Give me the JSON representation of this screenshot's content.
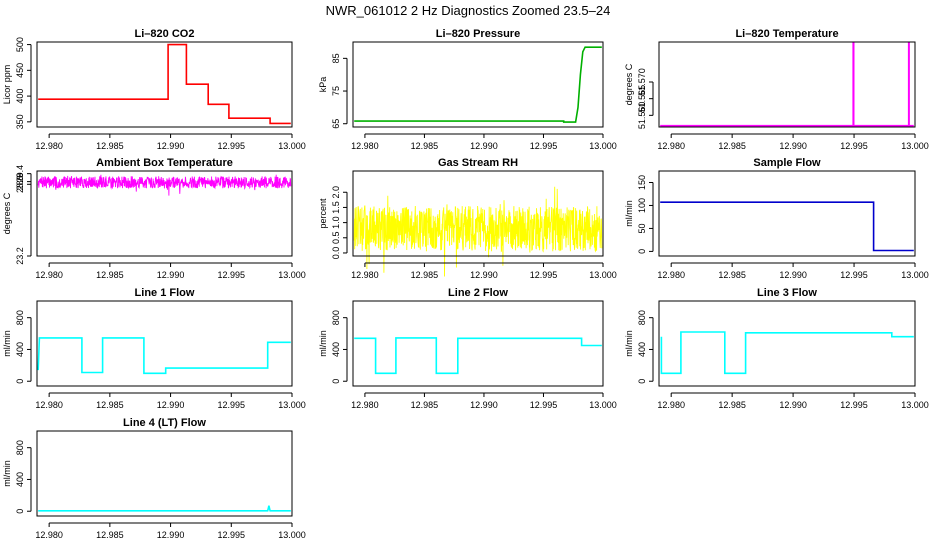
{
  "title": "NWR_061012  2 Hz Diagnostics Zoomed 23.5–24",
  "chart_data": [
    {
      "type": "line",
      "title": "Li–820 CO2",
      "ylabel": "Licor ppm",
      "color": "#ff0000",
      "style": "step",
      "xlim": [
        12.979,
        13.0
      ],
      "ylim": [
        340,
        505
      ],
      "xticks": [
        12.98,
        12.985,
        12.99,
        12.995,
        13.0
      ],
      "xtick_labels": [
        "12.980",
        "12.985",
        "12.990",
        "12.995",
        "13.000"
      ],
      "yticks": [
        350,
        400,
        450,
        500
      ],
      "series": [
        {
          "name": "CO2",
          "points": [
            [
              12.9791,
              394
            ],
            [
              12.9898,
              394
            ],
            [
              12.9898,
              500
            ],
            [
              12.9913,
              500
            ],
            [
              12.9913,
              423
            ],
            [
              12.9931,
              423
            ],
            [
              12.9931,
              384
            ],
            [
              12.9948,
              384
            ],
            [
              12.9948,
              357
            ],
            [
              12.9982,
              357
            ],
            [
              12.9982,
              347
            ],
            [
              12.9999,
              347
            ]
          ]
        }
      ]
    },
    {
      "type": "line",
      "title": "Li–820 Pressure",
      "ylabel": "kPa",
      "color": "#00b000",
      "style": "step",
      "xlim": [
        12.979,
        13.0
      ],
      "ylim": [
        64,
        90
      ],
      "xticks": [
        12.98,
        12.985,
        12.99,
        12.995,
        13.0
      ],
      "xtick_labels": [
        "12.980",
        "12.985",
        "12.990",
        "12.995",
        "13.000"
      ],
      "yticks": [
        65,
        75,
        85
      ],
      "series": [
        {
          "name": "Pressure",
          "points": [
            [
              12.9791,
              65.8
            ],
            [
              12.9967,
              65.8
            ],
            [
              12.9967,
              65.5
            ],
            [
              12.9977,
              65.5
            ],
            [
              12.9979,
              70
            ],
            [
              12.9981,
              80
            ],
            [
              12.9983,
              87
            ],
            [
              12.9985,
              88.4
            ],
            [
              12.9999,
              88.4
            ]
          ]
        }
      ]
    },
    {
      "type": "line",
      "title": "Li–820 Temperature",
      "ylabel": "degrees C",
      "color": "#ff00ff",
      "style": "step",
      "xlim": [
        12.979,
        13.0
      ],
      "ylim": [
        51.5565,
        51.582
      ],
      "xticks": [
        12.98,
        12.985,
        12.99,
        12.995,
        13.0
      ],
      "xtick_labels": [
        "12.980",
        "12.985",
        "12.990",
        "12.995",
        "13.000"
      ],
      "yticks": [
        51.57,
        51.565,
        51.56
      ],
      "ytick_labels": [
        "51.570",
        "51.565",
        "51.560"
      ],
      "series": [
        {
          "name": "Temperature",
          "points": [
            [
              12.9791,
              51.5569
            ],
            [
              12.99493,
              51.5569
            ],
            [
              12.99493,
              51.5818
            ],
            [
              12.99497,
              51.5818
            ],
            [
              12.99497,
              51.5569
            ],
            [
              12.99948,
              51.5569
            ],
            [
              12.99948,
              51.5818
            ],
            [
              12.99952,
              51.5818
            ],
            [
              12.99952,
              51.5569
            ],
            [
              12.9999,
              51.5569
            ]
          ]
        }
      ]
    },
    {
      "type": "line",
      "title": "Ambient Box Temperature",
      "ylabel": "degrees C",
      "color": "#ff00ff",
      "style": "noise",
      "xlim": [
        12.979,
        13.0
      ],
      "ylim": [
        23.2,
        29.6
      ],
      "xticks": [
        12.98,
        12.985,
        12.99,
        12.995,
        13.0
      ],
      "xtick_labels": [
        "12.980",
        "12.985",
        "12.990",
        "12.995",
        "13.000"
      ],
      "yticks": [
        23.2,
        28.6,
        28.8,
        29.4
      ],
      "ytick_labels": [
        "23.2",
        "28.6",
        "28.8",
        "29.4"
      ],
      "series": [
        {
          "name": "Box temperature",
          "noise": {
            "x0": 12.9791,
            "x1": 12.9999,
            "center": 28.75,
            "amp": 0.45,
            "n": 900,
            "seed": 7
          }
        }
      ]
    },
    {
      "type": "line",
      "title": "Gas Stream RH",
      "ylabel": "percent",
      "color": "#ffff00",
      "style": "noise",
      "xlim": [
        12.979,
        13.0
      ],
      "ylim": [
        -0.1,
        2.7
      ],
      "xticks": [
        12.98,
        12.985,
        12.99,
        12.995,
        13.0
      ],
      "xtick_labels": [
        "12.980",
        "12.985",
        "12.990",
        "12.995",
        "13.000"
      ],
      "yticks": [
        0,
        0.5,
        1,
        1.5,
        2
      ],
      "ytick_labels": [
        "0.0",
        "0.5",
        "1.0",
        "1.5",
        "2.0"
      ],
      "series": [
        {
          "name": "RH",
          "noise": {
            "x0": 12.9791,
            "x1": 12.9999,
            "center": 0.8,
            "amp": 0.75,
            "n": 900,
            "seed": 13
          }
        }
      ]
    },
    {
      "type": "line",
      "title": "Sample Flow",
      "ylabel": "ml/min",
      "color": "#0000cc",
      "style": "step",
      "xlim": [
        12.979,
        13.0
      ],
      "ylim": [
        -10,
        175
      ],
      "xticks": [
        12.98,
        12.985,
        12.99,
        12.995,
        13.0
      ],
      "xtick_labels": [
        "12.980",
        "12.985",
        "12.990",
        "12.995",
        "13.000"
      ],
      "yticks": [
        0,
        50,
        100,
        150
      ],
      "series": [
        {
          "name": "Sample flow",
          "points": [
            [
              12.9791,
              107
            ],
            [
              12.9966,
              107
            ],
            [
              12.9966,
              2
            ],
            [
              12.9999,
              2
            ]
          ]
        }
      ]
    },
    {
      "type": "line",
      "title": "Line 1 Flow",
      "ylabel": "ml/min",
      "color": "#00ffff",
      "style": "step",
      "xlim": [
        12.979,
        13.0
      ],
      "ylim": [
        -60,
        1010
      ],
      "xticks": [
        12.98,
        12.985,
        12.99,
        12.995,
        13.0
      ],
      "xtick_labels": [
        "12.980",
        "12.985",
        "12.990",
        "12.995",
        "13.000"
      ],
      "yticks": [
        0,
        400,
        800
      ],
      "series": [
        {
          "name": "Line 1",
          "points": [
            [
              12.9791,
              140
            ],
            [
              12.9792,
              545
            ],
            [
              12.9827,
              545
            ],
            [
              12.9827,
              110
            ],
            [
              12.9844,
              110
            ],
            [
              12.9844,
              545
            ],
            [
              12.9878,
              545
            ],
            [
              12.9878,
              100
            ],
            [
              12.9896,
              100
            ],
            [
              12.9896,
              165
            ],
            [
              12.998,
              165
            ],
            [
              12.998,
              490
            ],
            [
              12.9999,
              490
            ]
          ]
        }
      ]
    },
    {
      "type": "line",
      "title": "Line 2 Flow",
      "ylabel": "ml/min",
      "color": "#00ffff",
      "style": "step",
      "xlim": [
        12.979,
        13.0
      ],
      "ylim": [
        -60,
        1010
      ],
      "xticks": [
        12.98,
        12.985,
        12.99,
        12.995,
        13.0
      ],
      "xtick_labels": [
        "12.980",
        "12.985",
        "12.990",
        "12.995",
        "13.000"
      ],
      "yticks": [
        0,
        400,
        800
      ],
      "series": [
        {
          "name": "Line 2",
          "points": [
            [
              12.9791,
              540
            ],
            [
              12.9809,
              540
            ],
            [
              12.9809,
              100
            ],
            [
              12.9826,
              100
            ],
            [
              12.9826,
              545
            ],
            [
              12.986,
              545
            ],
            [
              12.986,
              100
            ],
            [
              12.9878,
              100
            ],
            [
              12.9878,
              540
            ],
            [
              12.9982,
              540
            ],
            [
              12.9982,
              450
            ],
            [
              12.9999,
              450
            ]
          ]
        }
      ]
    },
    {
      "type": "line",
      "title": "Line 3 Flow",
      "ylabel": "ml/min",
      "color": "#00ffff",
      "style": "step",
      "xlim": [
        12.979,
        13.0
      ],
      "ylim": [
        -60,
        1010
      ],
      "xticks": [
        12.98,
        12.985,
        12.99,
        12.995,
        13.0
      ],
      "xtick_labels": [
        "12.980",
        "12.985",
        "12.990",
        "12.995",
        "13.000"
      ],
      "yticks": [
        0,
        400,
        800
      ],
      "series": [
        {
          "name": "Line 3",
          "points": [
            [
              12.9792,
              560
            ],
            [
              12.9792,
              100
            ],
            [
              12.9808,
              100
            ],
            [
              12.9808,
              620
            ],
            [
              12.9844,
              620
            ],
            [
              12.9844,
              100
            ],
            [
              12.9861,
              100
            ],
            [
              12.9861,
              610
            ],
            [
              12.9981,
              610
            ],
            [
              12.9981,
              560
            ],
            [
              12.9999,
              560
            ]
          ]
        }
      ]
    },
    {
      "type": "line",
      "title": "Line 4 (LT) Flow",
      "ylabel": "ml/min",
      "color": "#00ffff",
      "style": "step",
      "xlim": [
        12.979,
        13.0
      ],
      "ylim": [
        -60,
        1010
      ],
      "xticks": [
        12.98,
        12.985,
        12.99,
        12.995,
        13.0
      ],
      "xtick_labels": [
        "12.980",
        "12.985",
        "12.990",
        "12.995",
        "13.000"
      ],
      "yticks": [
        0,
        400,
        800
      ],
      "series": [
        {
          "name": "Line 4",
          "points": [
            [
              12.9791,
              5
            ],
            [
              12.998,
              5
            ],
            [
              12.9981,
              70
            ],
            [
              12.9982,
              5
            ],
            [
              12.9999,
              5
            ]
          ]
        }
      ]
    }
  ]
}
